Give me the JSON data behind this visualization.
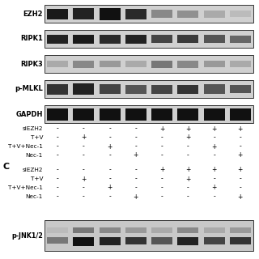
{
  "labels_top": [
    "EZH2",
    "RIPK1",
    "RIPK3",
    "p-MLKL",
    "GAPDH"
  ],
  "label_bottom": "p-JNK1/2",
  "section_c_label": "C",
  "treatment_labels": [
    "siEZH2",
    "T+V",
    "T+V+Nec-1",
    "Nec-1"
  ],
  "treatment_signs_top": [
    [
      "-",
      "-",
      "-",
      "-",
      "+",
      "+",
      "+",
      "+"
    ],
    [
      "-",
      "+",
      "-",
      "-",
      "-",
      "+",
      "-",
      "-"
    ],
    [
      "-",
      "-",
      "+",
      "-",
      "-",
      "-",
      "+",
      "-"
    ],
    [
      "-",
      "-",
      "-",
      "+",
      "-",
      "-",
      "-",
      "+"
    ]
  ],
  "treatment_signs_bottom": [
    [
      "-",
      "-",
      "-",
      "-",
      "+",
      "+",
      "+",
      "+"
    ],
    [
      "-",
      "+",
      "-",
      "-",
      "-",
      "+",
      "-",
      "-"
    ],
    [
      "-",
      "-",
      "+",
      "-",
      "-",
      "-",
      "+",
      "-"
    ],
    [
      "-",
      "-",
      "-",
      "+",
      "-",
      "-",
      "-",
      "+"
    ]
  ],
  "n_lanes": 8,
  "bg_color": "#ffffff",
  "ezh2_bands": [
    "#1a1a1a",
    "#222222",
    "#111111",
    "#2a2a2a",
    "#888888",
    "#909090",
    "#aaaaaa",
    "#bbbbbb"
  ],
  "ripk1_bands": [
    "#222222",
    "#1a1a1a",
    "#2a2a2a",
    "#222222",
    "#444444",
    "#3a3a3a",
    "#555555",
    "#666666"
  ],
  "ripk3_bands": [
    "#aaaaaa",
    "#888888",
    "#999999",
    "#aaaaaa",
    "#777777",
    "#888888",
    "#999999",
    "#aaaaaa"
  ],
  "pmlkl_bands": [
    "#333333",
    "#222222",
    "#444444",
    "#555555",
    "#444444",
    "#333333",
    "#555555",
    "#555555"
  ],
  "gapdh_bands": [
    "#111111",
    "#111111",
    "#111111",
    "#111111",
    "#111111",
    "#111111",
    "#111111",
    "#111111"
  ],
  "jnk_upper": [
    "#bbbbbb",
    "#777777",
    "#888888",
    "#999999",
    "#aaaaaa",
    "#888888",
    "#aaaaaa",
    "#999999"
  ],
  "jnk_lower": [
    "#777777",
    "#111111",
    "#222222",
    "#333333",
    "#555555",
    "#222222",
    "#444444",
    "#333333"
  ]
}
